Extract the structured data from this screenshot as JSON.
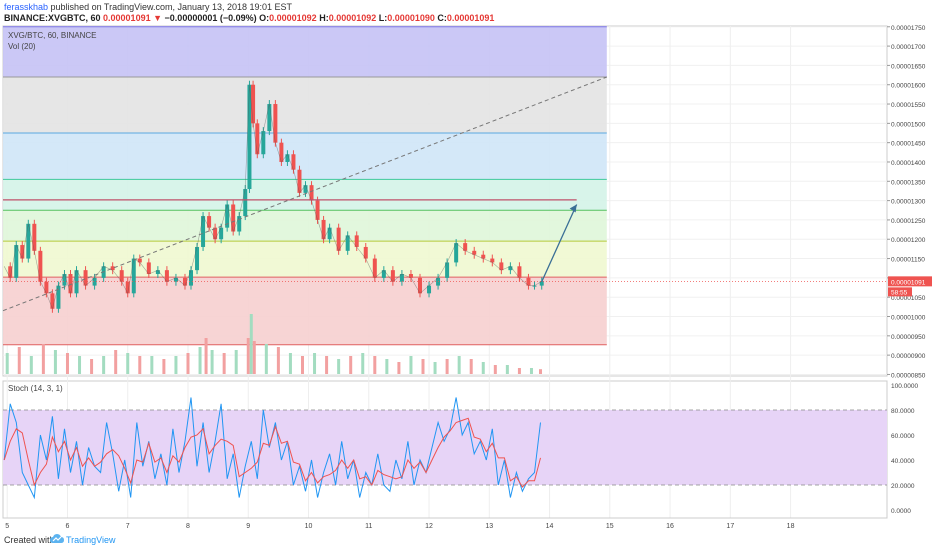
{
  "header": {
    "author": "ferasskhab",
    "published": "published on TradingView.com, January 13, 2018 19:01 EST",
    "symbol": "BINANCE:XVGBTC, 60",
    "last": "0.00001091",
    "change": "−0.00000001 (−0.09%)",
    "o_label": "O:",
    "o": "0.00001092",
    "h_label": "H:",
    "h": "0.00001092",
    "l_label": "L:",
    "l": "0.00001090",
    "c_label": "C:",
    "c": "0.00001091"
  },
  "chart_data": {
    "type": "line",
    "title": "XVG/BTC, 60, BINANCE",
    "volume_label": "Vol (20)",
    "stoch_label": "Stoch (14, 3, 1)",
    "price_ticks": [
      "0.00001750",
      "0.00001700",
      "0.00001650",
      "0.00001600",
      "0.00001550",
      "0.00001500",
      "0.00001450",
      "0.00001400",
      "0.00001350",
      "0.00001300",
      "0.00001250",
      "0.00001200",
      "0.00001150",
      "0.00001100",
      "0.00001050",
      "0.00001000",
      "0.00000950",
      "0.00000900",
      "0.00000850"
    ],
    "price_tick_values": [
      1750,
      1700,
      1650,
      1600,
      1550,
      1500,
      1450,
      1400,
      1350,
      1300,
      1250,
      1200,
      1150,
      1100,
      1050,
      1000,
      950,
      900,
      850
    ],
    "stoch_ticks": [
      "100.0000",
      "80.0000",
      "60.0000",
      "40.0000",
      "20.0000",
      "0.0000"
    ],
    "stoch_tick_values": [
      100,
      80,
      60,
      40,
      20,
      0
    ],
    "x_ticks": [
      "5",
      "6",
      "7",
      "8",
      "9",
      "10",
      "11",
      "12",
      "13",
      "14",
      "15",
      "16",
      "17",
      "18"
    ],
    "x_tick_values": [
      5,
      6,
      7,
      8,
      9,
      10,
      11,
      12,
      13,
      14,
      15,
      16,
      17,
      18
    ],
    "xlim": [
      4.93,
      19.6
    ],
    "ylim": [
      846,
      1752
    ],
    "current_price_label": "0.00001091",
    "countdown_label": "58:55",
    "fib_levels": [
      1750,
      1620,
      1475,
      1355,
      1275,
      1195,
      1102,
      927
    ],
    "fib_colors": [
      "#c5c2f5",
      "#e3e3e3",
      "#cfe6f7",
      "#d4f3e8",
      "#dff6d9",
      "#f0f8d0",
      "#f6cfcf"
    ],
    "fib_x_range": [
      4.93,
      14.95
    ],
    "resistance_line": 1302,
    "trend_line": {
      "x": [
        4.93,
        14.95
      ],
      "y": [
        1015,
        1620
      ]
    },
    "projection_arrow": {
      "x": [
        13.87,
        14.45
      ],
      "y": [
        1090,
        1290
      ]
    },
    "price_series": {
      "x": [
        4.95,
        5.05,
        5.15,
        5.25,
        5.35,
        5.45,
        5.55,
        5.65,
        5.75,
        5.85,
        5.95,
        6.05,
        6.15,
        6.3,
        6.45,
        6.6,
        6.75,
        6.9,
        7.0,
        7.1,
        7.2,
        7.35,
        7.5,
        7.65,
        7.8,
        7.95,
        8.05,
        8.15,
        8.25,
        8.35,
        8.45,
        8.55,
        8.65,
        8.75,
        8.85,
        8.95,
        9.02,
        9.08,
        9.15,
        9.25,
        9.35,
        9.45,
        9.55,
        9.65,
        9.75,
        9.85,
        9.95,
        10.05,
        10.15,
        10.25,
        10.35,
        10.5,
        10.65,
        10.8,
        10.95,
        11.1,
        11.25,
        11.4,
        11.55,
        11.7,
        11.85,
        12.0,
        12.15,
        12.3,
        12.45,
        12.6,
        12.75,
        12.9,
        13.05,
        13.2,
        13.35,
        13.5,
        13.65,
        13.75,
        13.87
      ],
      "y": [
        1130,
        1100,
        1185,
        1150,
        1240,
        1170,
        1090,
        1060,
        1020,
        1080,
        1110,
        1060,
        1120,
        1080,
        1100,
        1130,
        1120,
        1090,
        1060,
        1150,
        1140,
        1110,
        1120,
        1090,
        1100,
        1080,
        1120,
        1180,
        1260,
        1230,
        1200,
        1230,
        1290,
        1220,
        1260,
        1330,
        1600,
        1500,
        1420,
        1480,
        1550,
        1450,
        1400,
        1420,
        1380,
        1320,
        1340,
        1300,
        1250,
        1200,
        1230,
        1170,
        1210,
        1180,
        1150,
        1100,
        1120,
        1090,
        1110,
        1100,
        1060,
        1080,
        1100,
        1140,
        1190,
        1170,
        1160,
        1150,
        1140,
        1120,
        1130,
        1100,
        1080,
        1080,
        1091
      ]
    },
    "stoch_series": {
      "x": [
        4.95,
        5.05,
        5.15,
        5.25,
        5.35,
        5.45,
        5.55,
        5.65,
        5.75,
        5.85,
        5.95,
        6.05,
        6.15,
        6.25,
        6.35,
        6.45,
        6.55,
        6.65,
        6.75,
        6.85,
        6.95,
        7.05,
        7.15,
        7.25,
        7.35,
        7.45,
        7.55,
        7.65,
        7.75,
        7.85,
        7.95,
        8.05,
        8.15,
        8.25,
        8.35,
        8.45,
        8.55,
        8.65,
        8.75,
        8.85,
        8.95,
        9.05,
        9.15,
        9.25,
        9.35,
        9.45,
        9.55,
        9.65,
        9.75,
        9.85,
        9.95,
        10.05,
        10.15,
        10.25,
        10.35,
        10.45,
        10.55,
        10.65,
        10.75,
        10.85,
        10.95,
        11.05,
        11.15,
        11.25,
        11.35,
        11.45,
        11.55,
        11.65,
        11.75,
        11.85,
        11.95,
        12.05,
        12.15,
        12.25,
        12.35,
        12.45,
        12.55,
        12.65,
        12.75,
        12.85,
        12.95,
        13.05,
        13.15,
        13.25,
        13.35,
        13.45,
        13.55,
        13.65,
        13.75,
        13.85
      ],
      "y": [
        40,
        85,
        70,
        30,
        20,
        10,
        60,
        40,
        75,
        25,
        65,
        30,
        55,
        20,
        50,
        35,
        30,
        70,
        45,
        15,
        40,
        10,
        70,
        35,
        55,
        25,
        45,
        20,
        65,
        30,
        55,
        90,
        35,
        70,
        30,
        55,
        85,
        25,
        45,
        10,
        35,
        55,
        25,
        80,
        50,
        70,
        40,
        55,
        20,
        35,
        15,
        40,
        10,
        30,
        45,
        20,
        55,
        25,
        40,
        10,
        30,
        20,
        45,
        20,
        15,
        40,
        25,
        55,
        20,
        40,
        30,
        50,
        70,
        55,
        65,
        90,
        60,
        70,
        45,
        55,
        40,
        65,
        20,
        40,
        10,
        30,
        15,
        25,
        30,
        70
      ]
    },
    "volume_series": {
      "x": [
        5.0,
        5.2,
        5.4,
        5.6,
        5.8,
        6.0,
        6.2,
        6.4,
        6.6,
        6.8,
        7.0,
        7.2,
        7.4,
        7.6,
        7.8,
        8.0,
        8.2,
        8.3,
        8.4,
        8.6,
        8.8,
        9.0,
        9.05,
        9.1,
        9.3,
        9.5,
        9.7,
        9.9,
        10.1,
        10.3,
        10.5,
        10.7,
        10.9,
        11.1,
        11.3,
        11.5,
        11.7,
        11.9,
        12.1,
        12.3,
        12.5,
        12.7,
        12.9,
        13.1,
        13.3,
        13.5,
        13.7,
        13.85
      ],
      "y": [
        0.35,
        0.45,
        0.3,
        0.5,
        0.4,
        0.35,
        0.3,
        0.25,
        0.3,
        0.4,
        0.35,
        0.3,
        0.3,
        0.25,
        0.3,
        0.35,
        0.45,
        0.6,
        0.4,
        0.35,
        0.4,
        0.6,
        1.0,
        0.55,
        0.5,
        0.45,
        0.35,
        0.3,
        0.35,
        0.3,
        0.25,
        0.3,
        0.35,
        0.3,
        0.25,
        0.2,
        0.3,
        0.25,
        0.2,
        0.25,
        0.3,
        0.25,
        0.2,
        0.15,
        0.15,
        0.1,
        0.1,
        0.08
      ]
    }
  },
  "footer": {
    "created": "Created with",
    "brand": "TradingView"
  }
}
